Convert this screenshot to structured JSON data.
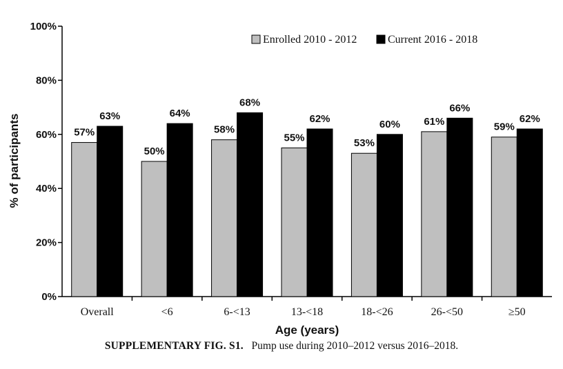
{
  "chart_data": {
    "type": "bar",
    "categories": [
      "Overall",
      "<6",
      "6-<13",
      "13-<18",
      "18-<26",
      "26-<50",
      "≥50"
    ],
    "series": [
      {
        "name": "Enrolled 2010 - 2012",
        "values": [
          57,
          50,
          58,
          55,
          53,
          61,
          59
        ],
        "color": "#bfbfbf"
      },
      {
        "name": "Current 2016 - 2018",
        "values": [
          63,
          64,
          68,
          62,
          60,
          66,
          62
        ],
        "color": "#000000"
      }
    ],
    "ylim": [
      0,
      100
    ],
    "yticks": [
      0,
      20,
      40,
      60,
      80,
      100
    ],
    "value_suffix": "%",
    "xlabel": "Age (years)",
    "ylabel": "% of participants",
    "legend_position": "top-right",
    "grid": false
  },
  "caption": {
    "label": "SUPPLEMENTARY FIG. S1.",
    "text": "Pump use during 2010–2012 versus 2016–2018."
  }
}
